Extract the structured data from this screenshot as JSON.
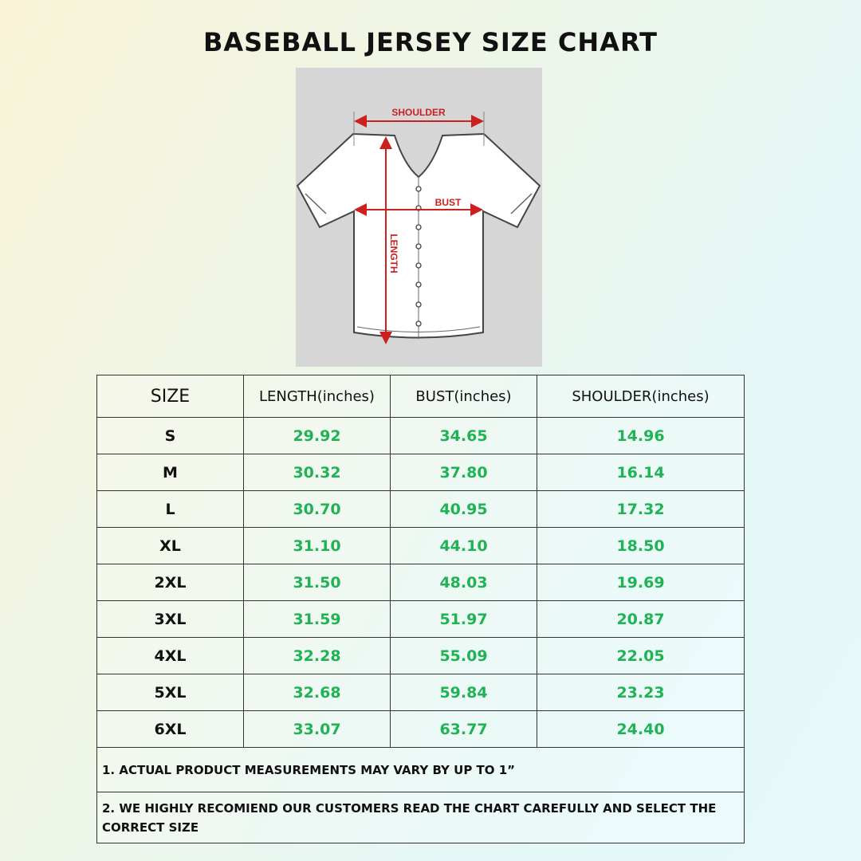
{
  "header": {
    "title": "Baseball Jersey Size Chart"
  },
  "diagram": {
    "shoulder": "SHOULDER",
    "bust": "BUST",
    "length": "LENGTH"
  },
  "table": {
    "header": [
      "SIZE",
      "LENGTH(inches)",
      "BUST(inches)",
      "SHOULDER(inches)"
    ],
    "rows": [
      [
        "S",
        "29.92",
        "34.65",
        "14.96"
      ],
      [
        "M",
        "30.32",
        "37.80",
        "16.14"
      ],
      [
        "L",
        "30.70",
        "40.95",
        "17.32"
      ],
      [
        "XL",
        "31.10",
        "44.10",
        "18.50"
      ],
      [
        "2XL",
        "31.50",
        "48.03",
        "19.69"
      ],
      [
        "3XL",
        "31.59",
        "51.97",
        "20.87"
      ],
      [
        "4XL",
        "32.28",
        "55.09",
        "22.05"
      ],
      [
        "5XL",
        "32.68",
        "59.84",
        "23.23"
      ],
      [
        "6XL",
        "33.07",
        "63.77",
        "24.40"
      ]
    ]
  },
  "notes": [
    "1. ACTUAL PRODUCT MEASUREMENTS MAY VARY BY UP TO 1”",
    "2. WE HIGHLY RECOMIEND OUR CUSTOMERS READ THE CHART CAREFULLY AND SELECT THE CORRECT SIZE"
  ]
}
